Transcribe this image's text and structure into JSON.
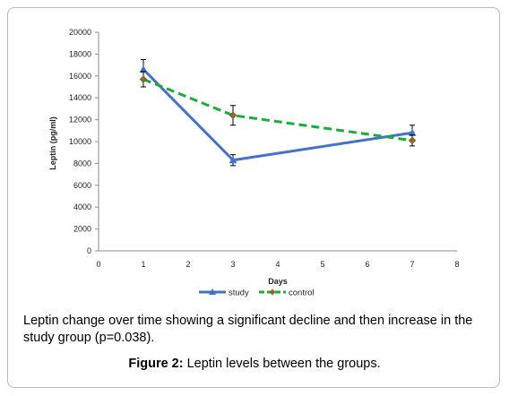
{
  "chart_data": {
    "type": "line",
    "xlabel": "Days",
    "ylabel": "Leptin (pg/ml)",
    "xlim": [
      0,
      8
    ],
    "ylim": [
      0,
      20000
    ],
    "xticks": [
      0,
      1,
      2,
      3,
      4,
      5,
      6,
      7,
      8
    ],
    "yticks": [
      0,
      2000,
      4000,
      6000,
      8000,
      10000,
      12000,
      14000,
      16000,
      18000,
      20000
    ],
    "legend_position": "bottom",
    "grid": false,
    "series": [
      {
        "name": "study",
        "color": "#4472c4",
        "marker": "triangle",
        "line_style": "solid",
        "x": [
          1,
          3,
          7
        ],
        "values": [
          16600,
          8300,
          10800
        ],
        "error": [
          900,
          500,
          700
        ]
      },
      {
        "name": "control",
        "color": "#1faa3c",
        "marker": "diamond",
        "line_style": "dashed",
        "x": [
          1,
          3,
          7
        ],
        "values": [
          15700,
          12400,
          10100
        ],
        "error": [
          700,
          900,
          500
        ]
      }
    ]
  },
  "caption": {
    "text": "Leptin change over time showing a significant decline and then increase in the study group (p=0.038).",
    "figure_label": "Figure 2:",
    "figure_title": " Leptin levels between the groups."
  }
}
